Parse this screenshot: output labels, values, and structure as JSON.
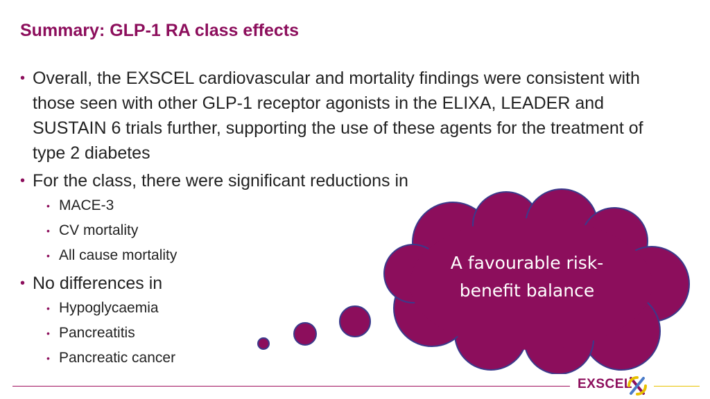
{
  "title": "Summary: GLP-1 RA class effects",
  "bullets": [
    {
      "text": "Overall, the EXSCEL cardiovascular and mortality findings were consistent with those seen with other GLP-1 receptor agonists in the ELIXA, LEADER and SUSTAIN 6 trials further, supporting the use of these agents for the treatment of type 2 diabetes",
      "sub": []
    },
    {
      "text": "For the class, there were significant reductions in",
      "sub": [
        "MACE-3",
        "CV mortality",
        "All cause mortality"
      ]
    },
    {
      "text": "No differences in",
      "sub": [
        "Hypoglycaemia",
        "Pancreatitis",
        "Pancreatic cancer"
      ]
    }
  ],
  "callout": {
    "line1": "A favourable risk-",
    "line2": "benefit balance"
  },
  "logo": {
    "text": "EXSCEL"
  },
  "colors": {
    "accent": "#8c0e5c",
    "cloud_outline": "#3a3a8c",
    "footer_gold": "#e8c100"
  }
}
